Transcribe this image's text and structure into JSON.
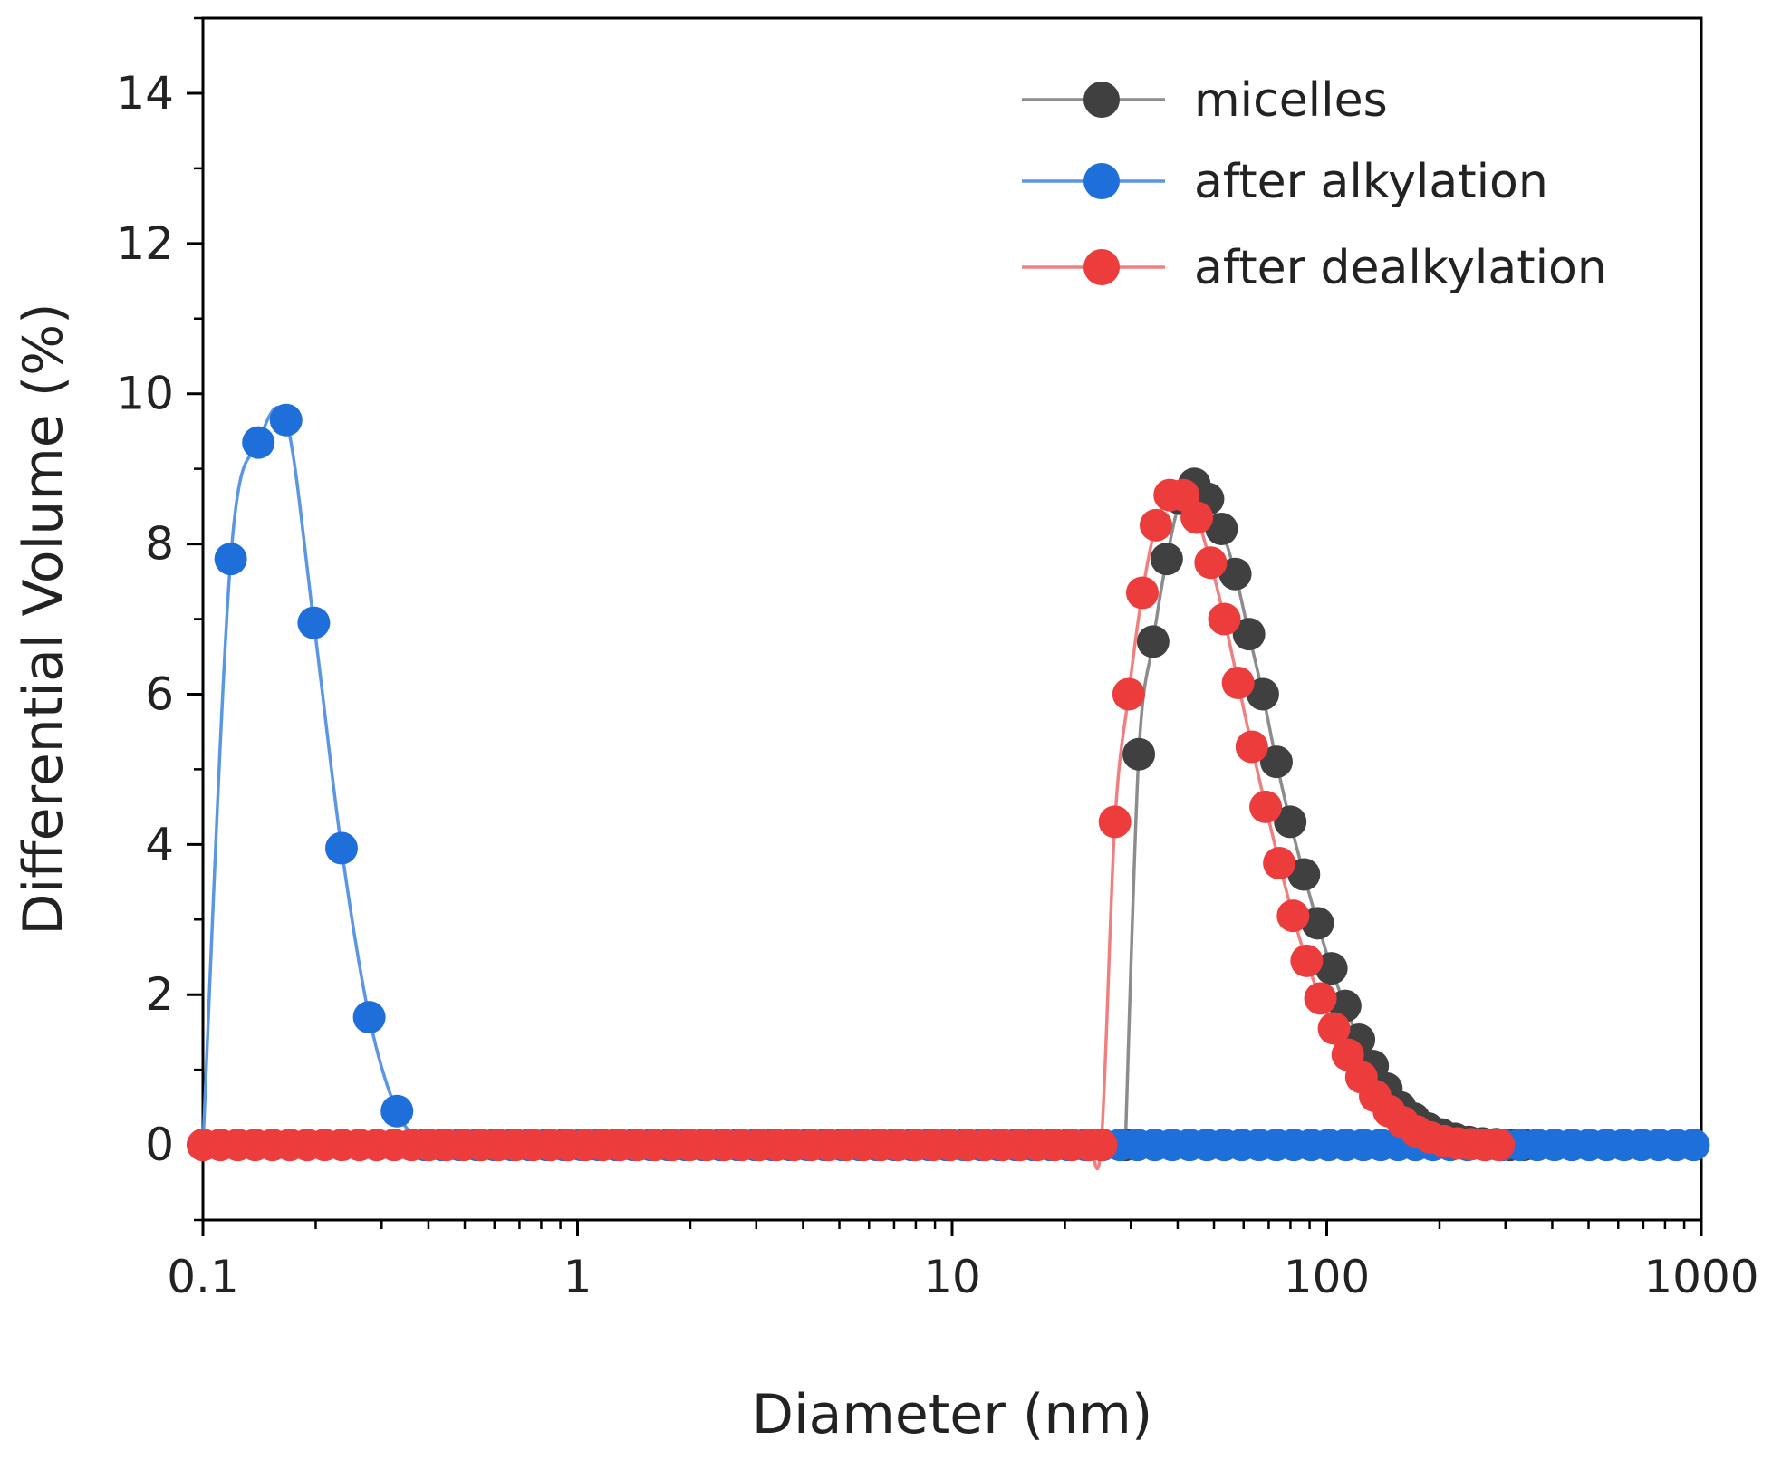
{
  "chart_data": {
    "type": "scatter",
    "title": "",
    "xlabel": "Diameter (nm)",
    "ylabel": "Differential Volume (%)",
    "xscale": "log",
    "xlim": [
      0.1,
      1000
    ],
    "ylim": [
      -1,
      15
    ],
    "x_ticks": [
      0.1,
      1,
      10,
      100,
      1000
    ],
    "x_tick_labels": [
      "0.1",
      "1",
      "10",
      "100",
      "1000"
    ],
    "y_ticks": [
      0,
      2,
      4,
      6,
      8,
      10,
      12,
      14
    ],
    "y_tick_labels": [
      "0",
      "2",
      "4",
      "6",
      "8",
      "10",
      "12",
      "14"
    ],
    "grid": false,
    "legend_position": "top-right",
    "series": [
      {
        "name": "micelles",
        "color": "#404040",
        "line_color": "#8c8c8c",
        "x": [
          29.0,
          31.5,
          34.4,
          37.4,
          40.7,
          44.3,
          48.2,
          52.4,
          57.0,
          62.0,
          67.5,
          73.4,
          79.9,
          86.9,
          94.6,
          102.9,
          112.0,
          121.9,
          132.6,
          144.3,
          157.0,
          170.8,
          185.9,
          202.2,
          220.0,
          239.4,
          260.5,
          283.4,
          308.4,
          335.5
        ],
        "y": [
          0,
          5.2,
          6.7,
          7.8,
          8.6,
          8.8,
          8.6,
          8.2,
          7.6,
          6.8,
          6.0,
          5.1,
          4.3,
          3.6,
          2.95,
          2.35,
          1.85,
          1.4,
          1.05,
          0.75,
          0.5,
          0.35,
          0.22,
          0.14,
          0.08,
          0.04,
          0.02,
          0.01,
          0,
          0
        ]
      },
      {
        "name": "after alkylation",
        "color": "#1f6fdb",
        "line_color": "#5a96e3",
        "x": [
          0.1,
          0.1186,
          0.1406,
          0.1667,
          0.1977,
          0.2344,
          0.278,
          0.3297,
          0.3909
        ],
        "y": [
          0,
          7.8,
          9.35,
          9.65,
          6.95,
          3.95,
          1.7,
          0.45,
          0
        ],
        "zero_extends_to": 1000
      },
      {
        "name": "after dealkylation",
        "color": "#ec3c3c",
        "line_color": "#f08080",
        "x": [
          25.0,
          27.2,
          29.6,
          32.2,
          35.0,
          38.1,
          41.4,
          45.0,
          49.0,
          53.3,
          58.0,
          63.1,
          68.7,
          74.7,
          81.3,
          88.4,
          96.2,
          104.6,
          113.8,
          123.8,
          134.7,
          146.6,
          159.5,
          173.5,
          188.8,
          205.4,
          223.4,
          243.1,
          264.5,
          287.7
        ],
        "y": [
          0,
          4.3,
          6.0,
          7.35,
          8.25,
          8.65,
          8.65,
          8.35,
          7.75,
          7.0,
          6.15,
          5.3,
          4.5,
          3.75,
          3.05,
          2.45,
          1.95,
          1.55,
          1.2,
          0.9,
          0.65,
          0.45,
          0.3,
          0.18,
          0.1,
          0.05,
          0.02,
          0.01,
          0,
          0
        ],
        "zero_extends_from": 0.1
      }
    ]
  }
}
